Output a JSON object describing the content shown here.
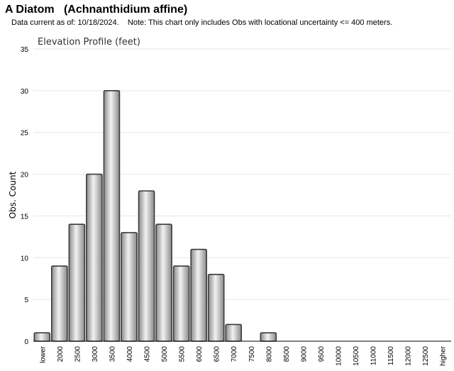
{
  "header": {
    "title": "A Diatom   (Achnanthidium affine)",
    "subtitle": "Data current as of: 10/18/2024.    Note: This chart only includes Obs with locational uncertainty <= 400 meters."
  },
  "chart_data": {
    "type": "bar",
    "title": "Elevation Profile (feet)",
    "xlabel": "",
    "ylabel": "Obs. Count",
    "ylim": [
      0,
      35
    ],
    "yticks": [
      0,
      5,
      10,
      15,
      20,
      25,
      30,
      35
    ],
    "grid": true,
    "categories": [
      "lower",
      "2000",
      "2500",
      "3000",
      "3500",
      "4000",
      "4500",
      "5000",
      "5500",
      "6000",
      "6500",
      "7000",
      "7500",
      "8000",
      "8500",
      "9000",
      "9500",
      "10000",
      "10500",
      "11000",
      "11500",
      "12000",
      "12500",
      "higher"
    ],
    "values": [
      1,
      9,
      14,
      20,
      30,
      13,
      18,
      14,
      9,
      11,
      8,
      2,
      0,
      1,
      0,
      0,
      0,
      0,
      0,
      0,
      0,
      0,
      0,
      0
    ],
    "colors": {
      "bar_light": "#f2f2f2",
      "bar_dark": "#8a8a8a",
      "bar_stroke": "#3a3a3a",
      "grid": "#e6e6e6",
      "axis": "#000000"
    }
  }
}
